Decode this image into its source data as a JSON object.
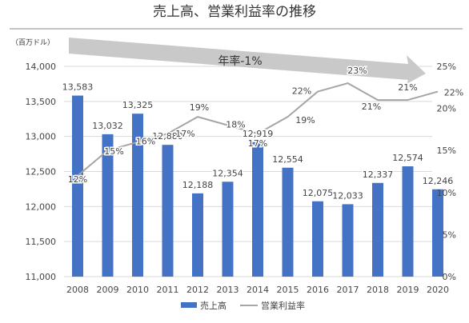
{
  "chart_data": {
    "type": "bar",
    "title": "売上高、営業利益率の推移",
    "unit_label": "（百万ドル）",
    "categories": [
      "2008",
      "2009",
      "2010",
      "2011",
      "2012",
      "2013",
      "2014",
      "2015",
      "2016",
      "2017",
      "2018",
      "2019",
      "2020"
    ],
    "series": [
      {
        "name": "売上高",
        "axis": "left",
        "type": "bar",
        "color": "#4472C4",
        "values": [
          13583,
          13032,
          13325,
          12880,
          12188,
          12354,
          12919,
          12554,
          12075,
          12033,
          12337,
          12574,
          12246
        ],
        "labels": [
          "13,583",
          "13,032",
          "13,325",
          "12,880",
          "12,188",
          "12,354",
          "12,919",
          "12,554",
          "12,075",
          "12,033",
          "12,337",
          "12,574",
          "12,246"
        ]
      },
      {
        "name": "営業利益率",
        "axis": "right",
        "type": "line",
        "color": "#A5A5A5",
        "values": [
          12,
          15,
          16,
          17,
          19,
          18,
          17,
          19,
          22,
          23,
          21,
          21,
          22
        ],
        "labels": [
          "12%",
          "15%",
          "16%",
          "17%",
          "19%",
          "18%",
          "17%",
          "19%",
          "22%",
          "23%",
          "21%",
          "21%",
          "22%"
        ]
      }
    ],
    "y_left": {
      "min": 11000,
      "max": 14000,
      "ticks": [
        "11,000",
        "11,500",
        "12,000",
        "12,500",
        "13,000",
        "13,500",
        "14,000"
      ]
    },
    "y_right": {
      "min": 0,
      "max": 25,
      "ticks": [
        "0%",
        "5%",
        "10%",
        "15%",
        "20%",
        "25%"
      ]
    },
    "annotation": {
      "text": "年率-1%",
      "type": "trend-arrow"
    },
    "legend": {
      "position": "bottom"
    },
    "grid": true
  }
}
